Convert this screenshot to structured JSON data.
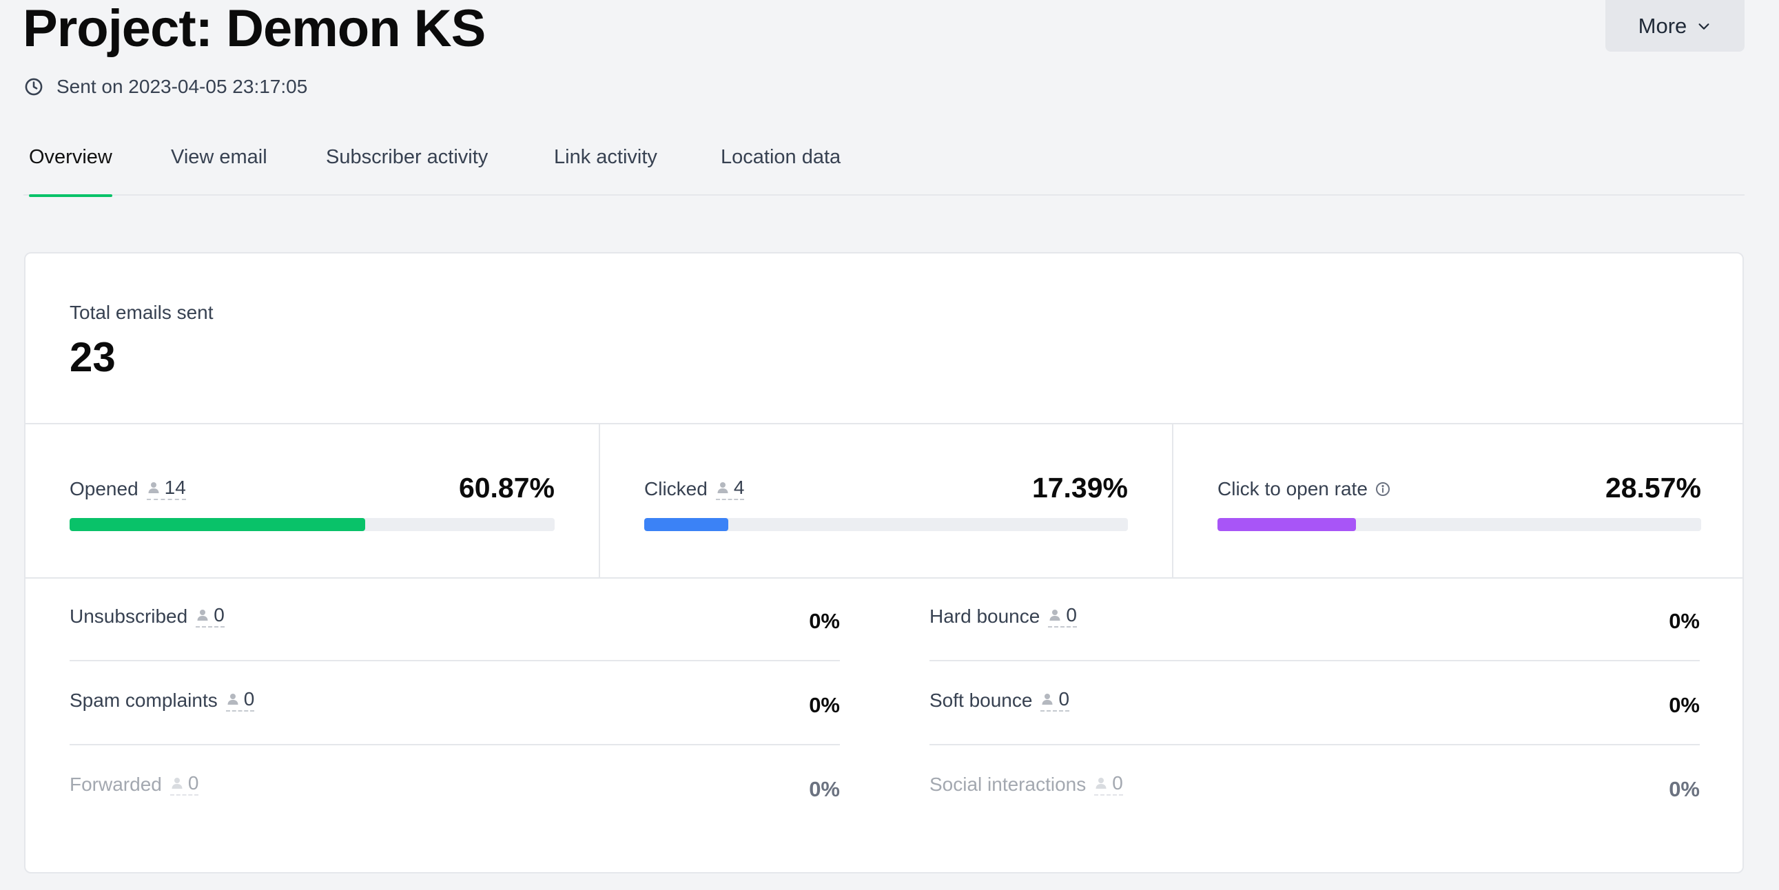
{
  "header": {
    "title": "Project: Demon KS",
    "sent_text": "Sent on 2023-04-05 23:17:05",
    "more_label": "More"
  },
  "tabs": [
    {
      "label": "Overview",
      "active": true
    },
    {
      "label": "View email",
      "active": false
    },
    {
      "label": "Subscriber activity",
      "active": false
    },
    {
      "label": "Link activity",
      "active": false
    },
    {
      "label": "Location data",
      "active": false
    }
  ],
  "summary": {
    "total_label": "Total emails sent",
    "total_value": "23"
  },
  "metrics": [
    {
      "label": "Opened",
      "count": "14",
      "percent": "60.87%",
      "fill": 0.6087,
      "color": "#09c269"
    },
    {
      "label": "Clicked",
      "count": "4",
      "percent": "17.39%",
      "fill": 0.1739,
      "color": "#3b82f6"
    },
    {
      "label": "Click to open rate",
      "percent": "28.57%",
      "fill": 0.2857,
      "color": "#a855f7"
    }
  ],
  "stats_left": [
    {
      "label": "Unsubscribed",
      "count": "0",
      "percent": "0%"
    },
    {
      "label": "Spam complaints",
      "count": "0",
      "percent": "0%"
    },
    {
      "label": "Forwarded",
      "count": "0",
      "percent": "0%"
    }
  ],
  "stats_right": [
    {
      "label": "Hard bounce",
      "count": "0",
      "percent": "0%"
    },
    {
      "label": "Soft bounce",
      "count": "0",
      "percent": "0%"
    },
    {
      "label": "Social interactions",
      "count": "0",
      "percent": "0%"
    }
  ],
  "icons": {
    "sent": "clock-icon",
    "more": "chevron-down-icon",
    "count": "person-icon",
    "info": "info-icon"
  }
}
